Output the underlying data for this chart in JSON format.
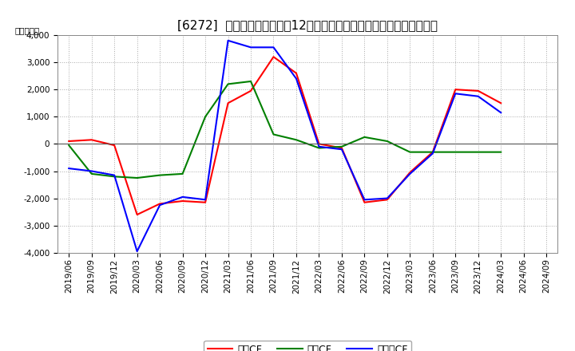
{
  "title": "[6272]  キャッシュフローの12か月移動合計の対前年同期増減額の推移",
  "ylabel": "（百万円）",
  "ylim": [
    -4000,
    4000
  ],
  "yticks": [
    -4000,
    -3000,
    -2000,
    -1000,
    0,
    1000,
    2000,
    3000,
    4000
  ],
  "background_color": "#ffffff",
  "legend_labels": [
    "営業CF",
    "投資CF",
    "フリーCF"
  ],
  "line_colors": {
    "eigyo": "#ff0000",
    "toshi": "#008000",
    "free": "#0000ff"
  },
  "dates": [
    "2019/06",
    "2019/09",
    "2019/12",
    "2020/03",
    "2020/06",
    "2020/09",
    "2020/12",
    "2021/03",
    "2021/06",
    "2021/09",
    "2021/12",
    "2022/03",
    "2022/06",
    "2022/09",
    "2022/12",
    "2023/03",
    "2023/06",
    "2023/09",
    "2023/12",
    "2024/03",
    "2024/06",
    "2024/09"
  ],
  "eigyo_cf": [
    100,
    150,
    -50,
    -2600,
    -2200,
    -2100,
    -2150,
    1500,
    1950,
    3200,
    2600,
    0,
    -150,
    -2150,
    -2050,
    -1050,
    -300,
    2000,
    1950,
    1500,
    null,
    null
  ],
  "toshi_cf": [
    -50,
    -1100,
    -1200,
    -1250,
    -1150,
    -1100,
    1000,
    2200,
    2300,
    350,
    150,
    -150,
    -100,
    250,
    100,
    -300,
    -300,
    -300,
    -300,
    -300,
    null,
    null
  ],
  "free_cf": [
    -900,
    -1000,
    -1150,
    -3950,
    -2250,
    -1950,
    -2050,
    3800,
    3550,
    3550,
    2400,
    -100,
    -200,
    -2050,
    -2000,
    -1100,
    -350,
    1850,
    1750,
    1150,
    null,
    null
  ],
  "title_fontsize": 11,
  "axis_fontsize": 7.5,
  "legend_fontsize": 9
}
